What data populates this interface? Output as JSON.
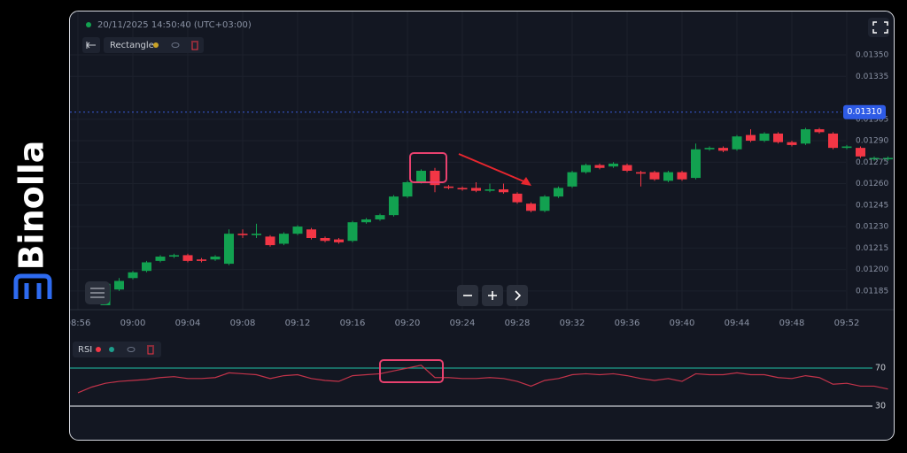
{
  "brand": "Binolla",
  "timestamp": "20/11/2025 14:50:40 (UTC+03:00)",
  "toolbar": {
    "tool": "Rectangle"
  },
  "chart_data": [
    {
      "type": "candlestick",
      "up_color": "#12a150",
      "down_color": "#f23645",
      "categories": [
        "08:56",
        null,
        null,
        null,
        "09:00",
        null,
        null,
        null,
        "09:04",
        null,
        null,
        null,
        "09:08",
        null,
        null,
        null,
        "09:12",
        null,
        null,
        null,
        "09:16",
        null,
        null,
        null,
        "09:20",
        null,
        null,
        null,
        "09:24",
        null,
        null,
        null,
        "09:28",
        null,
        null,
        null,
        "09:32",
        null,
        null,
        null,
        "09:36",
        null,
        null,
        null,
        "09:40",
        null,
        null,
        null,
        "09:44",
        null,
        null,
        null,
        "09:48",
        null,
        null,
        null,
        "09:52",
        null,
        null,
        null
      ],
      "open": [
        null,
        null,
        0.01175,
        0.01186,
        0.01194,
        0.01199,
        0.01206,
        0.01209,
        0.0121,
        0.01207,
        0.01207,
        0.01204,
        0.01225,
        0.01224,
        0.01223,
        0.01218,
        0.01225,
        0.01228,
        0.01222,
        0.01221,
        0.0122,
        0.01233,
        0.01235,
        0.01238,
        0.01251,
        0.01261,
        0.01269,
        0.01258,
        0.01257,
        0.01257,
        0.01255,
        0.01256,
        0.01253,
        0.01246,
        0.01241,
        0.01251,
        0.01258,
        0.01268,
        0.01273,
        0.01272,
        0.01273,
        0.01268,
        0.01268,
        0.01262,
        0.01268,
        0.01264,
        0.01284,
        0.01285,
        0.01284,
        0.01294,
        0.0129,
        0.01295,
        0.01289,
        0.01288,
        0.01298,
        0.01295,
        0.01285,
        0.01285,
        0.01277,
        0.01277
      ],
      "high": [
        null,
        null,
        0.01191,
        0.01194,
        0.01199,
        0.01206,
        0.0121,
        0.01211,
        0.01211,
        0.01208,
        0.0121,
        0.01228,
        0.01228,
        0.01232,
        0.01224,
        0.01226,
        0.01231,
        0.01229,
        0.01223,
        0.01222,
        0.01234,
        0.01236,
        0.01239,
        0.01252,
        0.01262,
        0.0127,
        0.01271,
        0.01259,
        0.01258,
        0.01261,
        0.0126,
        0.0126,
        0.01254,
        0.01247,
        0.01252,
        0.01258,
        0.01269,
        0.01274,
        0.01274,
        0.01275,
        0.01274,
        0.01269,
        0.01269,
        0.01269,
        0.01269,
        0.01288,
        0.01286,
        0.01286,
        0.01294,
        0.01298,
        0.01296,
        0.01296,
        0.0129,
        0.01299,
        0.01299,
        0.01296,
        0.01287,
        0.01286,
        0.01279,
        0.01279
      ],
      "low": [
        null,
        null,
        0.01175,
        0.01185,
        0.01193,
        0.01198,
        0.01205,
        0.01208,
        0.01205,
        0.01205,
        0.01206,
        0.01203,
        0.01222,
        0.01222,
        0.01216,
        0.01217,
        0.01224,
        0.01221,
        0.01219,
        0.01218,
        0.01219,
        0.01232,
        0.01234,
        0.01237,
        0.0125,
        0.0126,
        0.01254,
        0.01256,
        0.01255,
        0.01254,
        0.01254,
        0.01253,
        0.01246,
        0.0124,
        0.0124,
        0.0125,
        0.01257,
        0.01267,
        0.0127,
        0.01271,
        0.01268,
        0.01258,
        0.01262,
        0.01261,
        0.01262,
        0.01263,
        0.01283,
        0.01282,
        0.01283,
        0.01289,
        0.01289,
        0.01288,
        0.01286,
        0.01287,
        0.01295,
        0.01284,
        0.01284,
        0.01278,
        0.01276,
        0.01276
      ],
      "close": [
        null,
        null,
        0.0119,
        0.01192,
        0.01198,
        0.01205,
        0.01209,
        0.0121,
        0.01206,
        0.01206,
        0.01209,
        0.01225,
        0.01224,
        0.01225,
        0.01217,
        0.01225,
        0.0123,
        0.01222,
        0.0122,
        0.01219,
        0.01233,
        0.01235,
        0.01238,
        0.01251,
        0.01261,
        0.01269,
        0.01259,
        0.01257,
        0.01256,
        0.01255,
        0.01256,
        0.01254,
        0.01247,
        0.01241,
        0.01251,
        0.01257,
        0.01268,
        0.01273,
        0.01271,
        0.01274,
        0.01269,
        0.01267,
        0.01263,
        0.01268,
        0.01263,
        0.01284,
        0.01285,
        0.01283,
        0.01293,
        0.0129,
        0.01295,
        0.01289,
        0.01287,
        0.01298,
        0.01296,
        0.01285,
        0.01286,
        0.01279,
        0.01278,
        0.01278
      ],
      "ylim": [
        0.01175,
        0.01376
      ],
      "yticks": [
        {
          "value": 0.01185,
          "label": "0.01185"
        },
        {
          "value": 0.012,
          "label": "0.01200"
        },
        {
          "value": 0.01215,
          "label": "0.01215"
        },
        {
          "value": 0.0123,
          "label": "0.01230"
        },
        {
          "value": 0.01245,
          "label": "0.01245"
        },
        {
          "value": 0.0126,
          "label": "0.01260"
        },
        {
          "value": 0.01275,
          "label": "0.01275"
        },
        {
          "value": 0.0129,
          "label": "0.01290"
        },
        {
          "value": 0.01305,
          "label": "0.01305"
        },
        {
          "value": 0.01335,
          "label": "0.01335"
        },
        {
          "value": 0.0135,
          "label": "0.01350"
        }
      ],
      "current_price": 0.0131,
      "current_price_label": "0.01310",
      "grid": true
    },
    {
      "type": "line",
      "series": [
        {
          "name": "RSI",
          "color": "#c2334a",
          "values": [
            44,
            50,
            54,
            56,
            57,
            58,
            60,
            61,
            59,
            59,
            60,
            65,
            64,
            63,
            59,
            62,
            63,
            59,
            57,
            56,
            62,
            63,
            64,
            67,
            70,
            73,
            60,
            60,
            59,
            59,
            60,
            59,
            56,
            51,
            57,
            59,
            63,
            64,
            63,
            64,
            62,
            59,
            57,
            59,
            56,
            64,
            63,
            63,
            65,
            63,
            63,
            60,
            59,
            62,
            60,
            53,
            54,
            51,
            51,
            48
          ]
        }
      ],
      "ylim": [
        20,
        80
      ],
      "yticks": [
        30,
        70
      ],
      "tick_colors": [
        "#c9cdd4",
        "#1d9e8c"
      ]
    }
  ]
}
